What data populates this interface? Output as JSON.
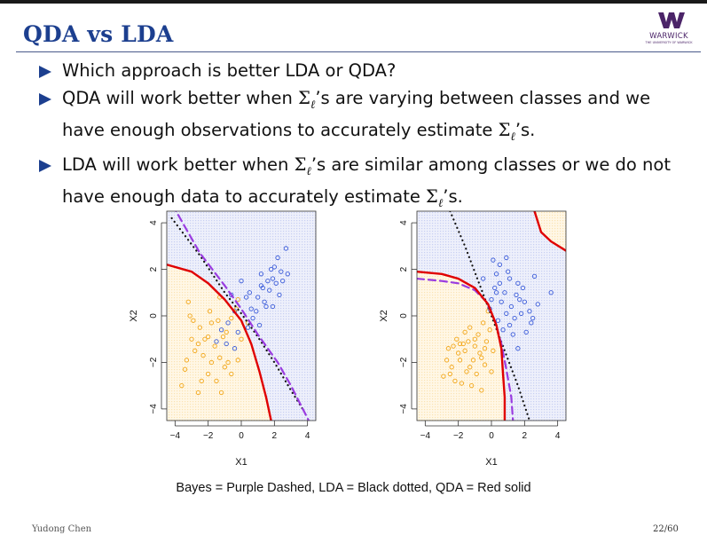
{
  "slide": {
    "title": "QDA vs LDA",
    "logo": {
      "name": "WARWICK",
      "subtitle": "THE UNIVERSITY OF WARWICK"
    },
    "bullets": [
      {
        "text": "Which approach is better LDA or QDA?"
      },
      {
        "p1": "QDA will work better when ",
        "sym1": "Σ",
        "sub1": "ℓ",
        "p2": "’s are varying between classes and we have enough observations to accurately estimate ",
        "sym2": "Σ",
        "sub2": "ℓ",
        "p3": "’s."
      },
      {
        "p1": "LDA will work better when ",
        "sym1": "Σ",
        "sub1": "ℓ",
        "p2": "’s are similar among classes or we do not have enough data to accurately estimate ",
        "sym2": "Σ",
        "sub2": "ℓ",
        "p3": "’s."
      }
    ],
    "caption": "Bayes = Purple Dashed, LDA = Black dotted, QDA = Red solid",
    "footer": {
      "author": "Yudong Chen",
      "page": "22/60"
    }
  },
  "chart_data": [
    {
      "type": "scatter",
      "panel": "left",
      "title": "",
      "xlabel": "X1",
      "ylabel": "X2",
      "xlim": [
        -4.5,
        4.5
      ],
      "ylim": [
        -4.5,
        4.5
      ],
      "xticks": [
        "−4",
        "−2",
        "0",
        "2",
        "4"
      ],
      "yticks": [
        "−4",
        "−2",
        "0",
        "2",
        "4"
      ],
      "colors": {
        "blue": "#3a5bd9",
        "orange": "#f2a618",
        "red": "#e00000",
        "purple": "#9a3ce0",
        "black": "#111111",
        "bg_blue": "#c7cff2",
        "bg_orange": "#fbe3b2"
      },
      "series": [
        {
          "name": "blue class",
          "points": [
            [
              1.3,
              1.2
            ],
            [
              2.2,
              2.5
            ],
            [
              1.0,
              0.8
            ],
            [
              2.8,
              1.8
            ],
            [
              1.8,
              2.0
            ],
            [
              0.5,
              1.0
            ],
            [
              2.5,
              1.5
            ],
            [
              1.5,
              0.4
            ],
            [
              1.9,
              1.6
            ],
            [
              0.6,
              0.3
            ],
            [
              1.2,
              1.8
            ],
            [
              2.3,
              0.9
            ],
            [
              0.9,
              0.2
            ],
            [
              1.7,
              1.1
            ],
            [
              2.7,
              2.9
            ],
            [
              1.4,
              0.6
            ],
            [
              0.0,
              1.5
            ],
            [
              -0.6,
              0.9
            ],
            [
              -0.4,
              0.2
            ],
            [
              1.1,
              -0.4
            ],
            [
              0.4,
              -0.5
            ],
            [
              -1.2,
              -0.6
            ],
            [
              -0.9,
              -1.2
            ],
            [
              -0.4,
              -1.4
            ],
            [
              -0.2,
              -0.7
            ],
            [
              2.1,
              1.4
            ],
            [
              1.6,
              1.5
            ],
            [
              0.7,
              -0.1
            ],
            [
              1.9,
              0.4
            ],
            [
              2.4,
              1.9
            ],
            [
              1.2,
              1.3
            ],
            [
              -1.5,
              -1.1
            ],
            [
              0.3,
              0.8
            ],
            [
              2.0,
              2.1
            ],
            [
              -0.8,
              -0.3
            ]
          ]
        },
        {
          "name": "orange class",
          "points": [
            [
              -3.2,
              0.6
            ],
            [
              -2.2,
              -1.0
            ],
            [
              -1.8,
              -0.3
            ],
            [
              -1.3,
              -1.8
            ],
            [
              -2.8,
              -1.5
            ],
            [
              -3.6,
              -3.0
            ],
            [
              -1.5,
              -2.8
            ],
            [
              -0.8,
              -2.0
            ],
            [
              -2.5,
              -0.5
            ],
            [
              -1.9,
              0.2
            ],
            [
              -2.0,
              -2.5
            ],
            [
              -1.1,
              -0.9
            ],
            [
              -3.0,
              -1.0
            ],
            [
              -1.3,
              0.8
            ],
            [
              0.0,
              -1.0
            ],
            [
              -0.6,
              -2.5
            ],
            [
              -2.3,
              -1.7
            ],
            [
              -3.3,
              -1.9
            ],
            [
              -1.6,
              -1.3
            ],
            [
              -0.3,
              0.3
            ],
            [
              -1.0,
              -2.2
            ],
            [
              -2.6,
              -3.3
            ],
            [
              -1.2,
              -3.3
            ],
            [
              -0.6,
              -0.1
            ],
            [
              -0.2,
              0.7
            ],
            [
              -2.0,
              -0.9
            ],
            [
              -2.4,
              -2.8
            ],
            [
              -2.9,
              -0.2
            ],
            [
              -1.4,
              -0.2
            ],
            [
              -3.1,
              0.0
            ],
            [
              -2.6,
              -1.2
            ],
            [
              -0.9,
              -0.7
            ],
            [
              0.4,
              -0.3
            ],
            [
              -1.8,
              -2.0
            ],
            [
              -3.4,
              -2.3
            ],
            [
              -0.2,
              -1.9
            ]
          ]
        }
      ],
      "boundaries": {
        "bayes_purple_dashed": [
          [
            -4.5,
            5.2
          ],
          [
            -2.5,
            2.7
          ],
          [
            -1.0,
            1.3
          ],
          [
            0.0,
            0.3
          ],
          [
            1.0,
            -0.8
          ],
          [
            2.2,
            -2.0
          ],
          [
            3.0,
            -3.0
          ],
          [
            4.0,
            -4.4
          ],
          [
            4.4,
            -5.0
          ]
        ],
        "lda_black_dotted": [
          [
            -4.2,
            4.2
          ],
          [
            -2.5,
            2.6
          ],
          [
            -1.0,
            1.0
          ],
          [
            0.0,
            0.1
          ],
          [
            1.0,
            -0.9
          ],
          [
            2.0,
            -2.0
          ],
          [
            3.0,
            -3.2
          ],
          [
            3.7,
            -4.0
          ]
        ],
        "qda_red_solid": [
          [
            -4.5,
            2.2
          ],
          [
            -3.0,
            1.9
          ],
          [
            -2.0,
            1.4
          ],
          [
            -1.0,
            0.7
          ],
          [
            0.0,
            -0.2
          ],
          [
            0.6,
            -1.2
          ],
          [
            1.1,
            -2.4
          ],
          [
            1.5,
            -3.5
          ],
          [
            1.8,
            -4.5
          ]
        ]
      }
    },
    {
      "type": "scatter",
      "panel": "right",
      "title": "",
      "xlabel": "X1",
      "ylabel": "X2",
      "xlim": [
        -4.5,
        4.5
      ],
      "ylim": [
        -4.5,
        4.5
      ],
      "xticks": [
        "−4",
        "−2",
        "0",
        "2",
        "4"
      ],
      "yticks": [
        "−4",
        "−2",
        "0",
        "2",
        "4"
      ],
      "colors": {
        "blue": "#3a5bd9",
        "orange": "#f2a618",
        "red": "#e00000",
        "purple": "#9a3ce0",
        "black": "#111111",
        "bg_blue": "#c7cff2",
        "bg_orange": "#fbe3b2"
      },
      "series": [
        {
          "name": "blue class",
          "points": [
            [
              0.1,
              2.4
            ],
            [
              0.5,
              2.2
            ],
            [
              0.9,
              2.5
            ],
            [
              0.3,
              1.8
            ],
            [
              1.1,
              1.6
            ],
            [
              1.6,
              1.4
            ],
            [
              2.6,
              1.7
            ],
            [
              0.2,
              1.2
            ],
            [
              0.8,
              1.0
            ],
            [
              1.5,
              0.9
            ],
            [
              2.0,
              0.6
            ],
            [
              3.6,
              1.0
            ],
            [
              0.6,
              0.6
            ],
            [
              1.2,
              0.4
            ],
            [
              1.8,
              0.1
            ],
            [
              2.4,
              -0.3
            ],
            [
              0.0,
              0.7
            ],
            [
              1.4,
              -0.1
            ],
            [
              2.1,
              -0.7
            ],
            [
              1.6,
              -1.4
            ],
            [
              1.3,
              -0.8
            ],
            [
              0.4,
              -0.2
            ],
            [
              1.0,
              1.9
            ],
            [
              2.3,
              0.2
            ],
            [
              1.7,
              0.7
            ],
            [
              0.5,
              1.4
            ],
            [
              -0.5,
              1.6
            ],
            [
              0.9,
              0.1
            ],
            [
              2.8,
              0.5
            ],
            [
              1.1,
              -0.4
            ],
            [
              1.9,
              1.2
            ],
            [
              -0.1,
              0.3
            ],
            [
              0.7,
              -0.6
            ],
            [
              2.5,
              -0.1
            ],
            [
              0.3,
              1.0
            ]
          ]
        },
        {
          "name": "orange class",
          "points": [
            [
              -2.6,
              -1.4
            ],
            [
              -2.1,
              -1.0
            ],
            [
              -1.6,
              -1.5
            ],
            [
              -1.0,
              -1.3
            ],
            [
              -0.6,
              -1.8
            ],
            [
              -1.9,
              -1.9
            ],
            [
              -2.4,
              -2.2
            ],
            [
              -0.8,
              -0.8
            ],
            [
              -0.3,
              -1.1
            ],
            [
              -1.3,
              -0.5
            ],
            [
              -0.5,
              -0.3
            ],
            [
              -2.9,
              -2.6
            ],
            [
              -2.2,
              -2.8
            ],
            [
              -1.2,
              -3.0
            ],
            [
              -0.6,
              -3.2
            ],
            [
              -1.5,
              -2.4
            ],
            [
              -0.1,
              -0.6
            ],
            [
              -2.0,
              -1.6
            ],
            [
              -1.7,
              -1.2
            ],
            [
              -1.1,
              -1.9
            ],
            [
              -0.4,
              -2.1
            ],
            [
              0.1,
              -1.5
            ],
            [
              -2.7,
              -1.9
            ],
            [
              -1.4,
              -1.1
            ],
            [
              -0.9,
              -2.5
            ],
            [
              -1.8,
              -2.9
            ],
            [
              -0.2,
              0.2
            ],
            [
              -1.6,
              -0.7
            ],
            [
              -2.3,
              -1.3
            ],
            [
              -1.0,
              -1.0
            ],
            [
              -0.7,
              -1.6
            ],
            [
              -1.3,
              -2.2
            ],
            [
              -1.9,
              -1.2
            ],
            [
              -0.4,
              -1.4
            ],
            [
              -2.5,
              -2.5
            ],
            [
              0.0,
              -2.4
            ]
          ]
        }
      ],
      "boundaries": {
        "bayes_purple_dashed": [
          [
            -4.5,
            1.6
          ],
          [
            -3.0,
            1.5
          ],
          [
            -2.0,
            1.4
          ],
          [
            -1.0,
            1.1
          ],
          [
            -0.3,
            0.6
          ],
          [
            0.2,
            -0.2
          ],
          [
            0.6,
            -1.2
          ],
          [
            0.9,
            -2.3
          ],
          [
            1.2,
            -3.5
          ],
          [
            1.3,
            -4.5
          ]
        ],
        "lda_black_dotted": [
          [
            -2.5,
            4.5
          ],
          [
            -1.6,
            3.0
          ],
          [
            -0.8,
            1.5
          ],
          [
            0.0,
            0.0
          ],
          [
            0.8,
            -1.5
          ],
          [
            1.6,
            -3.0
          ],
          [
            2.3,
            -4.5
          ]
        ],
        "qda_red_solid": [
          [
            -4.5,
            1.9
          ],
          [
            -3.0,
            1.8
          ],
          [
            -2.0,
            1.6
          ],
          [
            -1.0,
            1.2
          ],
          [
            -0.2,
            0.5
          ],
          [
            0.3,
            -0.4
          ],
          [
            0.6,
            -1.4
          ],
          [
            0.7,
            -2.5
          ],
          [
            0.8,
            -3.5
          ],
          [
            0.8,
            -4.5
          ]
        ],
        "qda_red_solid_corner": [
          [
            2.6,
            4.5
          ],
          [
            3.0,
            3.6
          ],
          [
            3.6,
            3.2
          ],
          [
            4.5,
            2.8
          ]
        ]
      }
    }
  ]
}
